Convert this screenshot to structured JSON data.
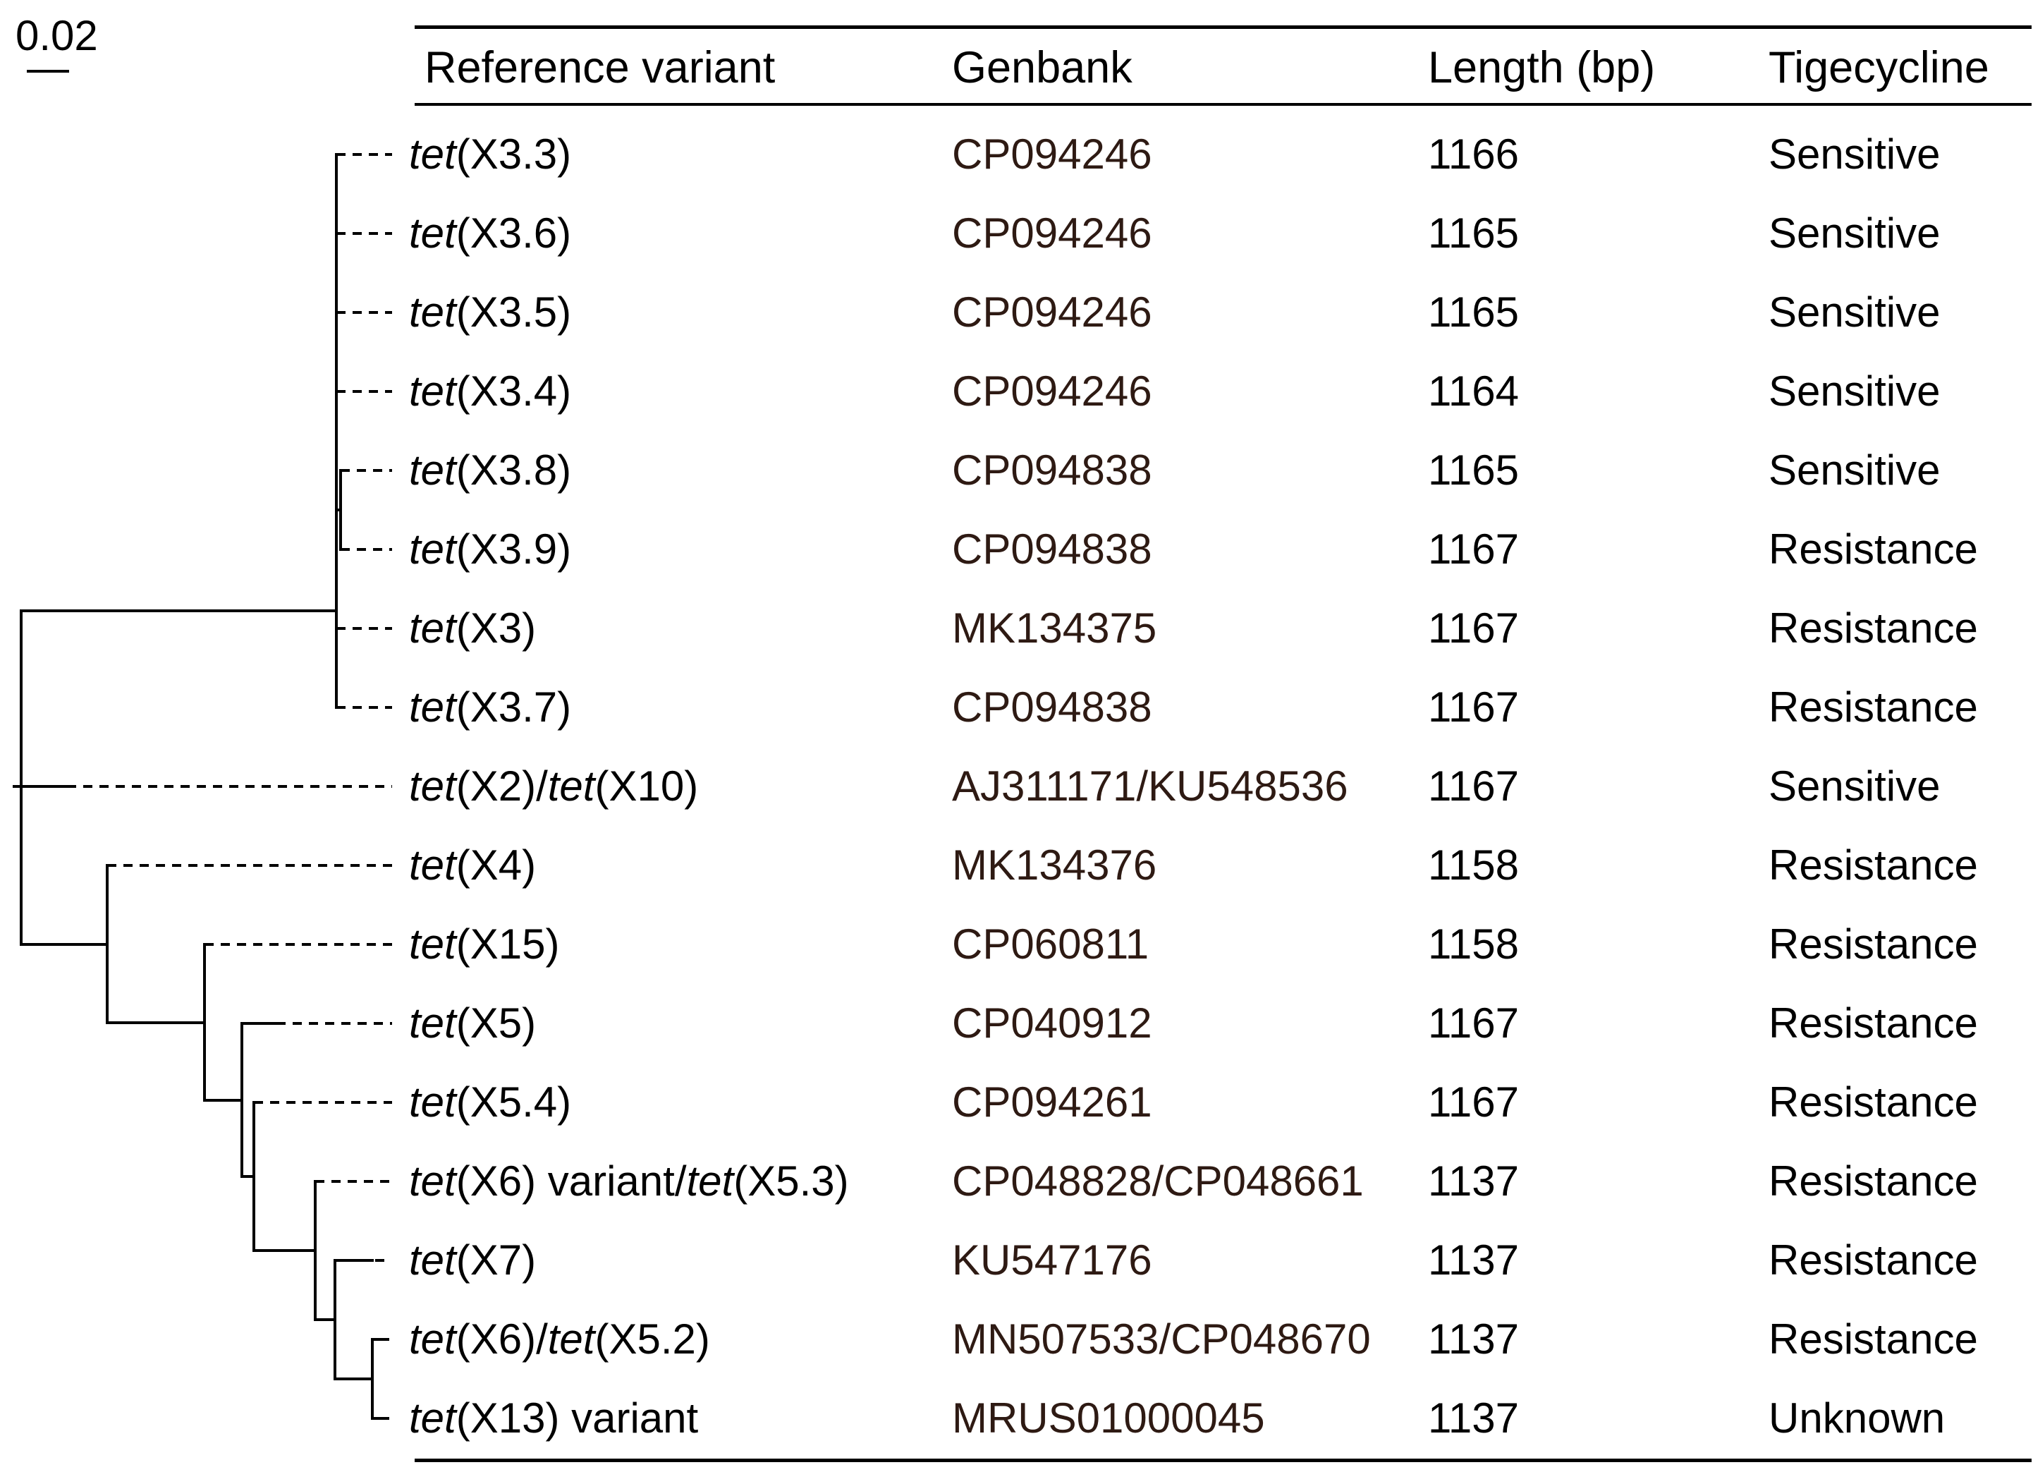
{
  "scale_bar": {
    "label": "0.02"
  },
  "table": {
    "headers": [
      "Reference variant",
      "Genbank",
      "Length (bp)",
      "Tigecycline"
    ],
    "rows": [
      {
        "variant": "tet(X3.3)",
        "genbank": "CP094246",
        "length": "1166",
        "tigecycline": "Sensitive"
      },
      {
        "variant": "tet(X3.6)",
        "genbank": "CP094246",
        "length": "1165",
        "tigecycline": "Sensitive"
      },
      {
        "variant": "tet(X3.5)",
        "genbank": "CP094246",
        "length": "1165",
        "tigecycline": "Sensitive"
      },
      {
        "variant": "tet(X3.4)",
        "genbank": "CP094246",
        "length": "1164",
        "tigecycline": "Sensitive"
      },
      {
        "variant": "tet(X3.8)",
        "genbank": "CP094838",
        "length": "1165",
        "tigecycline": "Sensitive"
      },
      {
        "variant": "tet(X3.9)",
        "genbank": "CP094838",
        "length": "1167",
        "tigecycline": "Resistance"
      },
      {
        "variant": "tet(X3)",
        "genbank": "MK134375",
        "length": "1167",
        "tigecycline": "Resistance"
      },
      {
        "variant": "tet(X3.7)",
        "genbank": "CP094838",
        "length": "1167",
        "tigecycline": "Resistance"
      },
      {
        "variant": "tet(X2)/tet(X10)",
        "genbank": "AJ311171/KU548536",
        "length": "1167",
        "tigecycline": "Sensitive"
      },
      {
        "variant": "tet(X4)",
        "genbank": "MK134376",
        "length": "1158",
        "tigecycline": "Resistance"
      },
      {
        "variant": "tet(X15)",
        "genbank": "CP060811",
        "length": "1158",
        "tigecycline": "Resistance"
      },
      {
        "variant": "tet(X5)",
        "genbank": "CP040912",
        "length": "1167",
        "tigecycline": "Resistance"
      },
      {
        "variant": "tet(X5.4)",
        "genbank": "CP094261",
        "length": "1167",
        "tigecycline": "Resistance"
      },
      {
        "variant": "tet(X6) variant/tet(X5.3)",
        "genbank": "CP048828/CP048661",
        "length": "1137",
        "tigecycline": "Resistance"
      },
      {
        "variant": "tet(X7)",
        "genbank": "KU547176",
        "length": "1137",
        "tigecycline": "Resistance"
      },
      {
        "variant": "tet(X6)/tet(X5.2)",
        "genbank": "MN507533/CP048670",
        "length": "1137",
        "tigecycline": "Resistance"
      },
      {
        "variant": "tet(X13) variant",
        "genbank": "MRUS01000045",
        "length": "1137",
        "tigecycline": "Unknown"
      }
    ]
  },
  "tree": {
    "scale": "0.02",
    "tips_top_to_bottom": [
      "tet(X3.3)",
      "tet(X3.6)",
      "tet(X3.5)",
      "tet(X3.4)",
      "tet(X3.8)",
      "tet(X3.9)",
      "tet(X3)",
      "tet(X3.7)",
      "tet(X2)/tet(X10)",
      "tet(X4)",
      "tet(X15)",
      "tet(X5)",
      "tet(X5.4)",
      "tet(X6) variant/tet(X5.3)",
      "tet(X7)",
      "tet(X6)/tet(X5.2)",
      "tet(X13) variant"
    ],
    "newick": "((tet(X3.3),tet(X3.6),tet(X3.5),tet(X3.4),(tet(X3.8),tet(X3.9)),tet(X3),tet(X3.7)),tet(X2)/tet(X10),(tet(X4),(tet(X15),(tet(X5),(tet(X5.4),(tet(X6) variant/tet(X5.3),(tet(X7),(tet(X6)/tet(X5.2),tet(X13) variant))))))));"
  },
  "colors": {
    "body_text": "#000000",
    "genbank_text": "#2e1a13",
    "tree_line": "#000000"
  }
}
